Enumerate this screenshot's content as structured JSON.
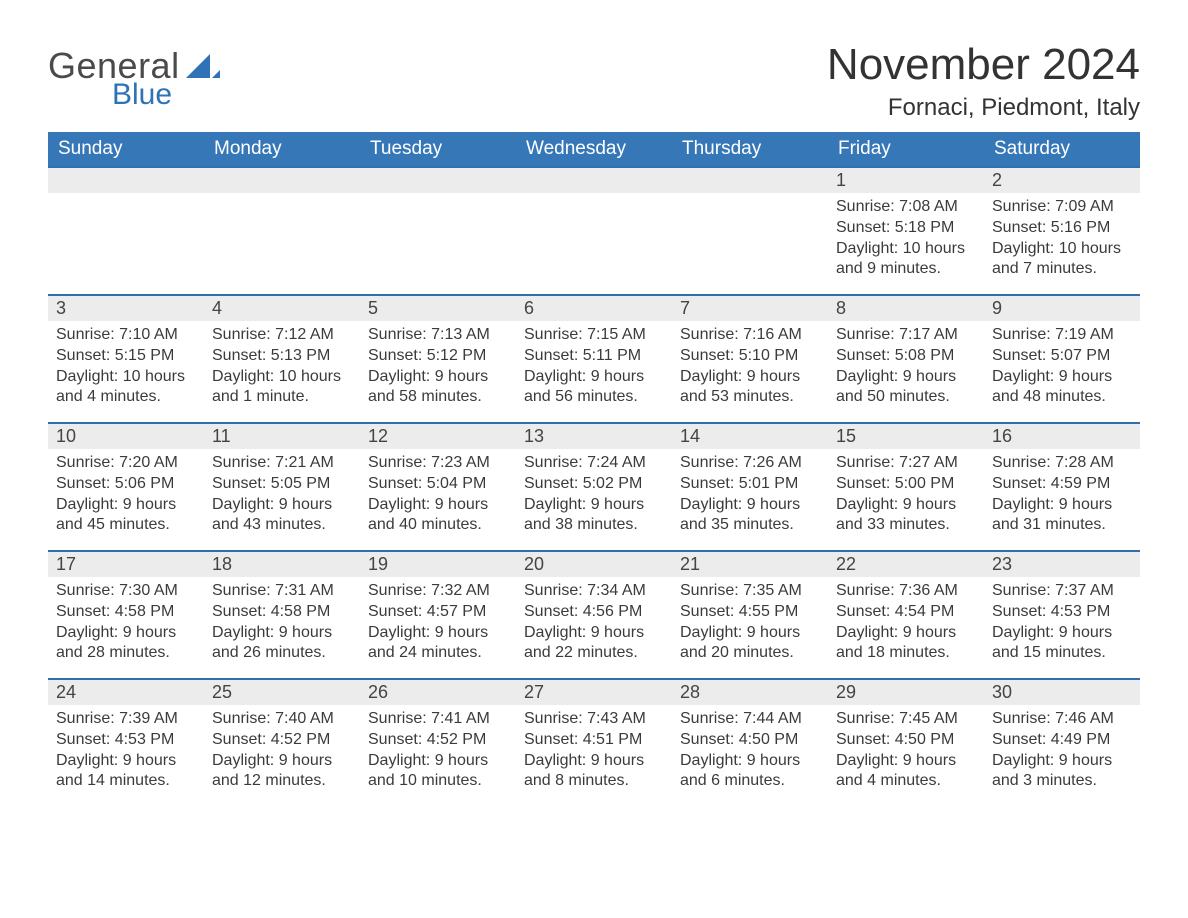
{
  "brand": {
    "word1": "General",
    "word2": "Blue",
    "word1_color": "#4a4a4a",
    "word2_color": "#2f72b6",
    "shape_color": "#2f72b6"
  },
  "header": {
    "title": "November 2024",
    "location": "Fornaci, Piedmont, Italy",
    "title_fontsize": 44,
    "location_fontsize": 24
  },
  "calendar": {
    "header_bg": "#3677b8",
    "header_fg": "#ffffff",
    "daynum_bg": "#ececec",
    "daynum_border": "#2f6fb0",
    "text_color": "#3b3b3b",
    "columns": [
      "Sunday",
      "Monday",
      "Tuesday",
      "Wednesday",
      "Thursday",
      "Friday",
      "Saturday"
    ],
    "weeks": [
      [
        {
          "blank": true
        },
        {
          "blank": true
        },
        {
          "blank": true
        },
        {
          "blank": true
        },
        {
          "blank": true
        },
        {
          "n": "1",
          "sunrise": "Sunrise: 7:08 AM",
          "sunset": "Sunset: 5:18 PM",
          "d1": "Daylight: 10 hours",
          "d2": "and 9 minutes."
        },
        {
          "n": "2",
          "sunrise": "Sunrise: 7:09 AM",
          "sunset": "Sunset: 5:16 PM",
          "d1": "Daylight: 10 hours",
          "d2": "and 7 minutes."
        }
      ],
      [
        {
          "n": "3",
          "sunrise": "Sunrise: 7:10 AM",
          "sunset": "Sunset: 5:15 PM",
          "d1": "Daylight: 10 hours",
          "d2": "and 4 minutes."
        },
        {
          "n": "4",
          "sunrise": "Sunrise: 7:12 AM",
          "sunset": "Sunset: 5:13 PM",
          "d1": "Daylight: 10 hours",
          "d2": "and 1 minute."
        },
        {
          "n": "5",
          "sunrise": "Sunrise: 7:13 AM",
          "sunset": "Sunset: 5:12 PM",
          "d1": "Daylight: 9 hours",
          "d2": "and 58 minutes."
        },
        {
          "n": "6",
          "sunrise": "Sunrise: 7:15 AM",
          "sunset": "Sunset: 5:11 PM",
          "d1": "Daylight: 9 hours",
          "d2": "and 56 minutes."
        },
        {
          "n": "7",
          "sunrise": "Sunrise: 7:16 AM",
          "sunset": "Sunset: 5:10 PM",
          "d1": "Daylight: 9 hours",
          "d2": "and 53 minutes."
        },
        {
          "n": "8",
          "sunrise": "Sunrise: 7:17 AM",
          "sunset": "Sunset: 5:08 PM",
          "d1": "Daylight: 9 hours",
          "d2": "and 50 minutes."
        },
        {
          "n": "9",
          "sunrise": "Sunrise: 7:19 AM",
          "sunset": "Sunset: 5:07 PM",
          "d1": "Daylight: 9 hours",
          "d2": "and 48 minutes."
        }
      ],
      [
        {
          "n": "10",
          "sunrise": "Sunrise: 7:20 AM",
          "sunset": "Sunset: 5:06 PM",
          "d1": "Daylight: 9 hours",
          "d2": "and 45 minutes."
        },
        {
          "n": "11",
          "sunrise": "Sunrise: 7:21 AM",
          "sunset": "Sunset: 5:05 PM",
          "d1": "Daylight: 9 hours",
          "d2": "and 43 minutes."
        },
        {
          "n": "12",
          "sunrise": "Sunrise: 7:23 AM",
          "sunset": "Sunset: 5:04 PM",
          "d1": "Daylight: 9 hours",
          "d2": "and 40 minutes."
        },
        {
          "n": "13",
          "sunrise": "Sunrise: 7:24 AM",
          "sunset": "Sunset: 5:02 PM",
          "d1": "Daylight: 9 hours",
          "d2": "and 38 minutes."
        },
        {
          "n": "14",
          "sunrise": "Sunrise: 7:26 AM",
          "sunset": "Sunset: 5:01 PM",
          "d1": "Daylight: 9 hours",
          "d2": "and 35 minutes."
        },
        {
          "n": "15",
          "sunrise": "Sunrise: 7:27 AM",
          "sunset": "Sunset: 5:00 PM",
          "d1": "Daylight: 9 hours",
          "d2": "and 33 minutes."
        },
        {
          "n": "16",
          "sunrise": "Sunrise: 7:28 AM",
          "sunset": "Sunset: 4:59 PM",
          "d1": "Daylight: 9 hours",
          "d2": "and 31 minutes."
        }
      ],
      [
        {
          "n": "17",
          "sunrise": "Sunrise: 7:30 AM",
          "sunset": "Sunset: 4:58 PM",
          "d1": "Daylight: 9 hours",
          "d2": "and 28 minutes."
        },
        {
          "n": "18",
          "sunrise": "Sunrise: 7:31 AM",
          "sunset": "Sunset: 4:58 PM",
          "d1": "Daylight: 9 hours",
          "d2": "and 26 minutes."
        },
        {
          "n": "19",
          "sunrise": "Sunrise: 7:32 AM",
          "sunset": "Sunset: 4:57 PM",
          "d1": "Daylight: 9 hours",
          "d2": "and 24 minutes."
        },
        {
          "n": "20",
          "sunrise": "Sunrise: 7:34 AM",
          "sunset": "Sunset: 4:56 PM",
          "d1": "Daylight: 9 hours",
          "d2": "and 22 minutes."
        },
        {
          "n": "21",
          "sunrise": "Sunrise: 7:35 AM",
          "sunset": "Sunset: 4:55 PM",
          "d1": "Daylight: 9 hours",
          "d2": "and 20 minutes."
        },
        {
          "n": "22",
          "sunrise": "Sunrise: 7:36 AM",
          "sunset": "Sunset: 4:54 PM",
          "d1": "Daylight: 9 hours",
          "d2": "and 18 minutes."
        },
        {
          "n": "23",
          "sunrise": "Sunrise: 7:37 AM",
          "sunset": "Sunset: 4:53 PM",
          "d1": "Daylight: 9 hours",
          "d2": "and 15 minutes."
        }
      ],
      [
        {
          "n": "24",
          "sunrise": "Sunrise: 7:39 AM",
          "sunset": "Sunset: 4:53 PM",
          "d1": "Daylight: 9 hours",
          "d2": "and 14 minutes."
        },
        {
          "n": "25",
          "sunrise": "Sunrise: 7:40 AM",
          "sunset": "Sunset: 4:52 PM",
          "d1": "Daylight: 9 hours",
          "d2": "and 12 minutes."
        },
        {
          "n": "26",
          "sunrise": "Sunrise: 7:41 AM",
          "sunset": "Sunset: 4:52 PM",
          "d1": "Daylight: 9 hours",
          "d2": "and 10 minutes."
        },
        {
          "n": "27",
          "sunrise": "Sunrise: 7:43 AM",
          "sunset": "Sunset: 4:51 PM",
          "d1": "Daylight: 9 hours",
          "d2": "and 8 minutes."
        },
        {
          "n": "28",
          "sunrise": "Sunrise: 7:44 AM",
          "sunset": "Sunset: 4:50 PM",
          "d1": "Daylight: 9 hours",
          "d2": "and 6 minutes."
        },
        {
          "n": "29",
          "sunrise": "Sunrise: 7:45 AM",
          "sunset": "Sunset: 4:50 PM",
          "d1": "Daylight: 9 hours",
          "d2": "and 4 minutes."
        },
        {
          "n": "30",
          "sunrise": "Sunrise: 7:46 AM",
          "sunset": "Sunset: 4:49 PM",
          "d1": "Daylight: 9 hours",
          "d2": "and 3 minutes."
        }
      ]
    ]
  }
}
